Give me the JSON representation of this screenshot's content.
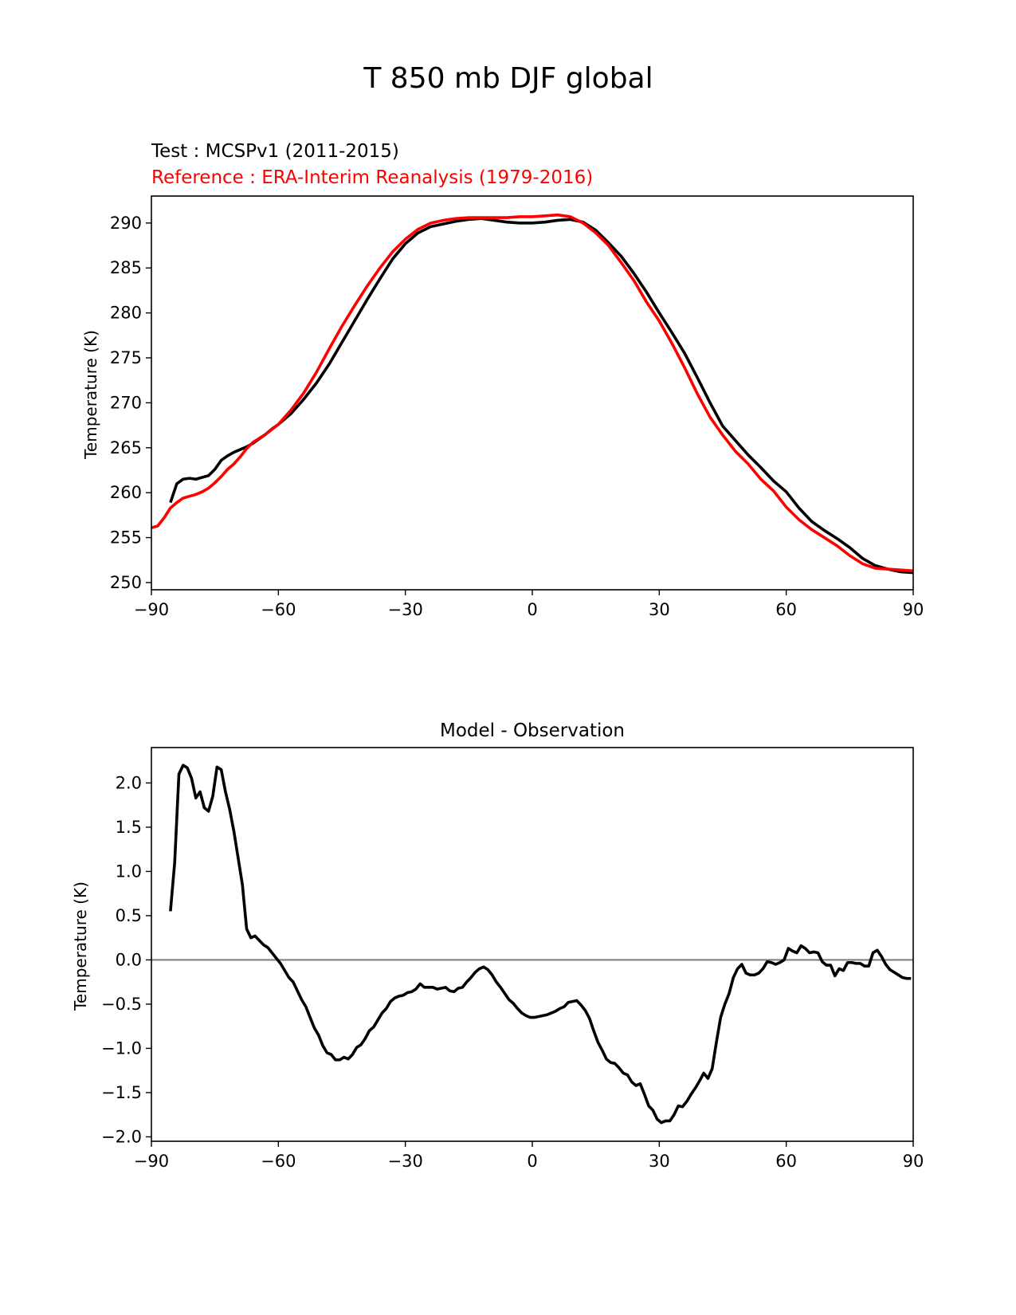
{
  "figure": {
    "title": "T 850 mb DJF global"
  },
  "chart_data": [
    {
      "type": "line",
      "test_label": "Test : MCSPv1 (2011-2015)",
      "reference_label": "Reference : ERA-Interim Reanalysis (1979-2016)",
      "ylabel": "Temperature (K)",
      "xlabel": "",
      "xlim": [
        -90,
        90
      ],
      "ylim": [
        249.2,
        293.0
      ],
      "xticks": [
        -90,
        -60,
        -30,
        0,
        30,
        60,
        90
      ],
      "xtick_labels": [
        "−90",
        "−60",
        "−30",
        "0",
        "30",
        "60",
        "90"
      ],
      "yticks": [
        250,
        255,
        260,
        265,
        270,
        275,
        280,
        285,
        290
      ],
      "ytick_labels": [
        "250",
        "255",
        "260",
        "265",
        "270",
        "275",
        "280",
        "285",
        "290"
      ],
      "colors": {
        "test": "#000000",
        "reference": "#ff0000"
      },
      "series": [
        {
          "role": "test",
          "x": [
            -85.5,
            -84,
            -82.5,
            -81,
            -79.5,
            -78,
            -76.5,
            -75,
            -73.5,
            -72,
            -70.5,
            -69,
            -67.5,
            -66,
            -64.5,
            -63,
            -61.5,
            -60,
            -57,
            -54,
            -51,
            -48,
            -45,
            -42,
            -39,
            -36,
            -33,
            -30,
            -27,
            -24,
            -21,
            -18,
            -15,
            -12,
            -9,
            -6,
            -3,
            0,
            3,
            6,
            9,
            12,
            15,
            18,
            21,
            24,
            27,
            30,
            33,
            36,
            39,
            42,
            45,
            48,
            51,
            54,
            57,
            60,
            63,
            66,
            69,
            72,
            75,
            78,
            81,
            84,
            87,
            90
          ],
          "y": [
            258.9,
            261.0,
            261.5,
            261.6,
            261.5,
            261.7,
            261.9,
            262.6,
            263.6,
            264.1,
            264.5,
            264.8,
            265.1,
            265.5,
            266.0,
            266.5,
            267.1,
            267.6,
            268.8,
            270.4,
            272.2,
            274.3,
            276.7,
            279.1,
            281.5,
            283.8,
            286.0,
            287.7,
            288.9,
            289.6,
            289.9,
            290.2,
            290.4,
            290.5,
            290.3,
            290.1,
            290.0,
            290.0,
            290.1,
            290.3,
            290.4,
            290.1,
            289.2,
            287.8,
            286.3,
            284.4,
            282.3,
            280.0,
            277.8,
            275.5,
            272.8,
            270.0,
            267.4,
            265.8,
            264.2,
            262.8,
            261.3,
            260.1,
            258.3,
            256.8,
            255.8,
            254.9,
            253.9,
            252.7,
            251.9,
            251.5,
            251.2,
            251.1
          ]
        },
        {
          "role": "reference",
          "x": [
            -90,
            -88.5,
            -87,
            -85.5,
            -84,
            -82.5,
            -81,
            -79.5,
            -78,
            -76.5,
            -75,
            -73.5,
            -72,
            -70.5,
            -69,
            -67.5,
            -66,
            -63,
            -60,
            -57,
            -54,
            -51,
            -48,
            -45,
            -42,
            -39,
            -36,
            -33,
            -30,
            -27,
            -24,
            -21,
            -18,
            -15,
            -12,
            -9,
            -6,
            -3,
            0,
            3,
            6,
            9,
            12,
            15,
            18,
            21,
            24,
            27,
            30,
            33,
            36,
            39,
            42,
            45,
            48,
            51,
            54,
            57,
            60,
            63,
            66,
            69,
            72,
            75,
            78,
            81,
            84,
            87,
            90
          ],
          "y": [
            256.1,
            256.3,
            257.2,
            258.3,
            258.9,
            259.4,
            259.6,
            259.8,
            260.1,
            260.5,
            261.1,
            261.8,
            262.6,
            263.2,
            264.0,
            264.9,
            265.6,
            266.5,
            267.6,
            269.2,
            271.1,
            273.4,
            276.0,
            278.5,
            280.8,
            283.0,
            285.0,
            286.8,
            288.2,
            289.3,
            290.0,
            290.3,
            290.5,
            290.6,
            290.6,
            290.6,
            290.6,
            290.7,
            290.7,
            290.8,
            290.9,
            290.7,
            290.0,
            288.9,
            287.5,
            285.6,
            283.6,
            281.2,
            279.1,
            276.6,
            273.9,
            271.0,
            268.4,
            266.4,
            264.6,
            263.2,
            261.5,
            260.2,
            258.4,
            257.0,
            255.9,
            255.0,
            254.1,
            253.0,
            252.1,
            251.6,
            251.5,
            251.4,
            251.3
          ]
        }
      ]
    },
    {
      "type": "line",
      "title": "Model - Observation",
      "ylabel": "Temperature (K)",
      "xlabel": "",
      "xlim": [
        -90,
        90
      ],
      "ylim": [
        -2.05,
        2.4
      ],
      "xticks": [
        -90,
        -60,
        -30,
        0,
        30,
        60,
        90
      ],
      "xtick_labels": [
        "−90",
        "−60",
        "−30",
        "0",
        "30",
        "60",
        "90"
      ],
      "yticks": [
        -2.0,
        -1.5,
        -1.0,
        -0.5,
        0.0,
        0.5,
        1.0,
        1.5,
        2.0
      ],
      "ytick_labels": [
        "−2.0",
        "−1.5",
        "−1.0",
        "−0.5",
        "0.0",
        "0.5",
        "1.0",
        "1.5",
        "2.0"
      ],
      "zero_line": 0.0,
      "colors": {
        "diff": "#000000",
        "zero": "#808080"
      },
      "series": [
        {
          "role": "diff",
          "x": [
            -85.5,
            -84.5,
            -83.5,
            -82.5,
            -81.5,
            -80.5,
            -79.5,
            -78.5,
            -77.5,
            -76.5,
            -75.5,
            -74.5,
            -73.5,
            -72.5,
            -71.5,
            -70.5,
            -69.5,
            -68.5,
            -67.5,
            -66.5,
            -65.5,
            -64.5,
            -63.5,
            -62.5,
            -61.5,
            -60.5,
            -59.5,
            -58.5,
            -57.5,
            -56.5,
            -55.5,
            -54.5,
            -53.5,
            -52.5,
            -51.5,
            -50.5,
            -49.5,
            -48.5,
            -47.5,
            -46.5,
            -45.5,
            -44.5,
            -43.5,
            -42.5,
            -41.5,
            -40.5,
            -39.5,
            -38.5,
            -37.5,
            -36.5,
            -35.5,
            -34.5,
            -33.5,
            -32.5,
            -31.5,
            -30.5,
            -29.5,
            -28.5,
            -27.5,
            -26.5,
            -25.5,
            -24.5,
            -23.5,
            -22.5,
            -21.5,
            -20.5,
            -19.5,
            -18.5,
            -17.5,
            -16.5,
            -15.5,
            -14.5,
            -13.5,
            -12.5,
            -11.5,
            -10.5,
            -9.5,
            -8.5,
            -7.5,
            -6.5,
            -5.5,
            -4.5,
            -3.5,
            -2.5,
            -1.5,
            -0.5,
            0.5,
            1.5,
            2.5,
            3.5,
            4.5,
            5.5,
            6.5,
            7.5,
            8.5,
            9.5,
            10.5,
            11.5,
            12.5,
            13.5,
            14.5,
            15.5,
            16.5,
            17.5,
            18.5,
            19.5,
            20.5,
            21.5,
            22.5,
            23.5,
            24.5,
            25.5,
            26.5,
            27.5,
            28.5,
            29.5,
            30.5,
            31.5,
            32.5,
            33.5,
            34.5,
            35.5,
            36.5,
            37.5,
            38.5,
            39.5,
            40.5,
            41.5,
            42.5,
            43.5,
            44.5,
            45.5,
            46.5,
            47.5,
            48.5,
            49.5,
            50.5,
            51.5,
            52.5,
            53.5,
            54.5,
            55.5,
            56.5,
            57.5,
            58.5,
            59.5,
            60.5,
            61.5,
            62.5,
            63.5,
            64.5,
            65.5,
            66.5,
            67.5,
            68.5,
            69.5,
            70.5,
            71.5,
            72.5,
            73.5,
            74.5,
            75.5,
            76.5,
            77.5,
            78.5,
            79.5,
            80.5,
            81.5,
            82.5,
            83.5,
            84.5,
            85.5,
            86.5,
            87.5,
            88.5,
            89.5
          ],
          "y": [
            0.55,
            1.1,
            2.1,
            2.2,
            2.17,
            2.05,
            1.83,
            1.9,
            1.72,
            1.68,
            1.85,
            2.18,
            2.15,
            1.9,
            1.7,
            1.45,
            1.15,
            0.85,
            0.35,
            0.25,
            0.27,
            0.22,
            0.17,
            0.14,
            0.08,
            0.02,
            -0.04,
            -0.12,
            -0.2,
            -0.25,
            -0.35,
            -0.45,
            -0.53,
            -0.65,
            -0.77,
            -0.85,
            -0.97,
            -1.05,
            -1.07,
            -1.13,
            -1.13,
            -1.1,
            -1.12,
            -1.07,
            -0.99,
            -0.96,
            -0.89,
            -0.8,
            -0.76,
            -0.68,
            -0.6,
            -0.55,
            -0.47,
            -0.43,
            -0.41,
            -0.4,
            -0.37,
            -0.36,
            -0.33,
            -0.27,
            -0.31,
            -0.31,
            -0.31,
            -0.33,
            -0.32,
            -0.31,
            -0.35,
            -0.36,
            -0.32,
            -0.31,
            -0.25,
            -0.2,
            -0.14,
            -0.1,
            -0.08,
            -0.11,
            -0.17,
            -0.25,
            -0.31,
            -0.38,
            -0.45,
            -0.49,
            -0.55,
            -0.6,
            -0.63,
            -0.65,
            -0.65,
            -0.64,
            -0.63,
            -0.62,
            -0.6,
            -0.58,
            -0.55,
            -0.53,
            -0.48,
            -0.47,
            -0.46,
            -0.51,
            -0.57,
            -0.66,
            -0.8,
            -0.93,
            -1.02,
            -1.12,
            -1.16,
            -1.17,
            -1.22,
            -1.28,
            -1.3,
            -1.38,
            -1.42,
            -1.4,
            -1.52,
            -1.65,
            -1.7,
            -1.8,
            -1.84,
            -1.82,
            -1.82,
            -1.75,
            -1.65,
            -1.66,
            -1.6,
            -1.52,
            -1.45,
            -1.37,
            -1.28,
            -1.34,
            -1.23,
            -0.93,
            -0.65,
            -0.5,
            -0.38,
            -0.2,
            -0.1,
            -0.05,
            -0.15,
            -0.17,
            -0.17,
            -0.15,
            -0.1,
            -0.02,
            -0.03,
            -0.05,
            -0.03,
            0.0,
            0.13,
            0.1,
            0.08,
            0.16,
            0.13,
            0.08,
            0.09,
            0.08,
            -0.02,
            -0.06,
            -0.06,
            -0.18,
            -0.1,
            -0.12,
            -0.03,
            -0.03,
            -0.04,
            -0.04,
            -0.07,
            -0.07,
            0.08,
            0.11,
            0.04,
            -0.05,
            -0.11,
            -0.14,
            -0.17,
            -0.2,
            -0.21,
            -0.21
          ]
        }
      ]
    }
  ]
}
